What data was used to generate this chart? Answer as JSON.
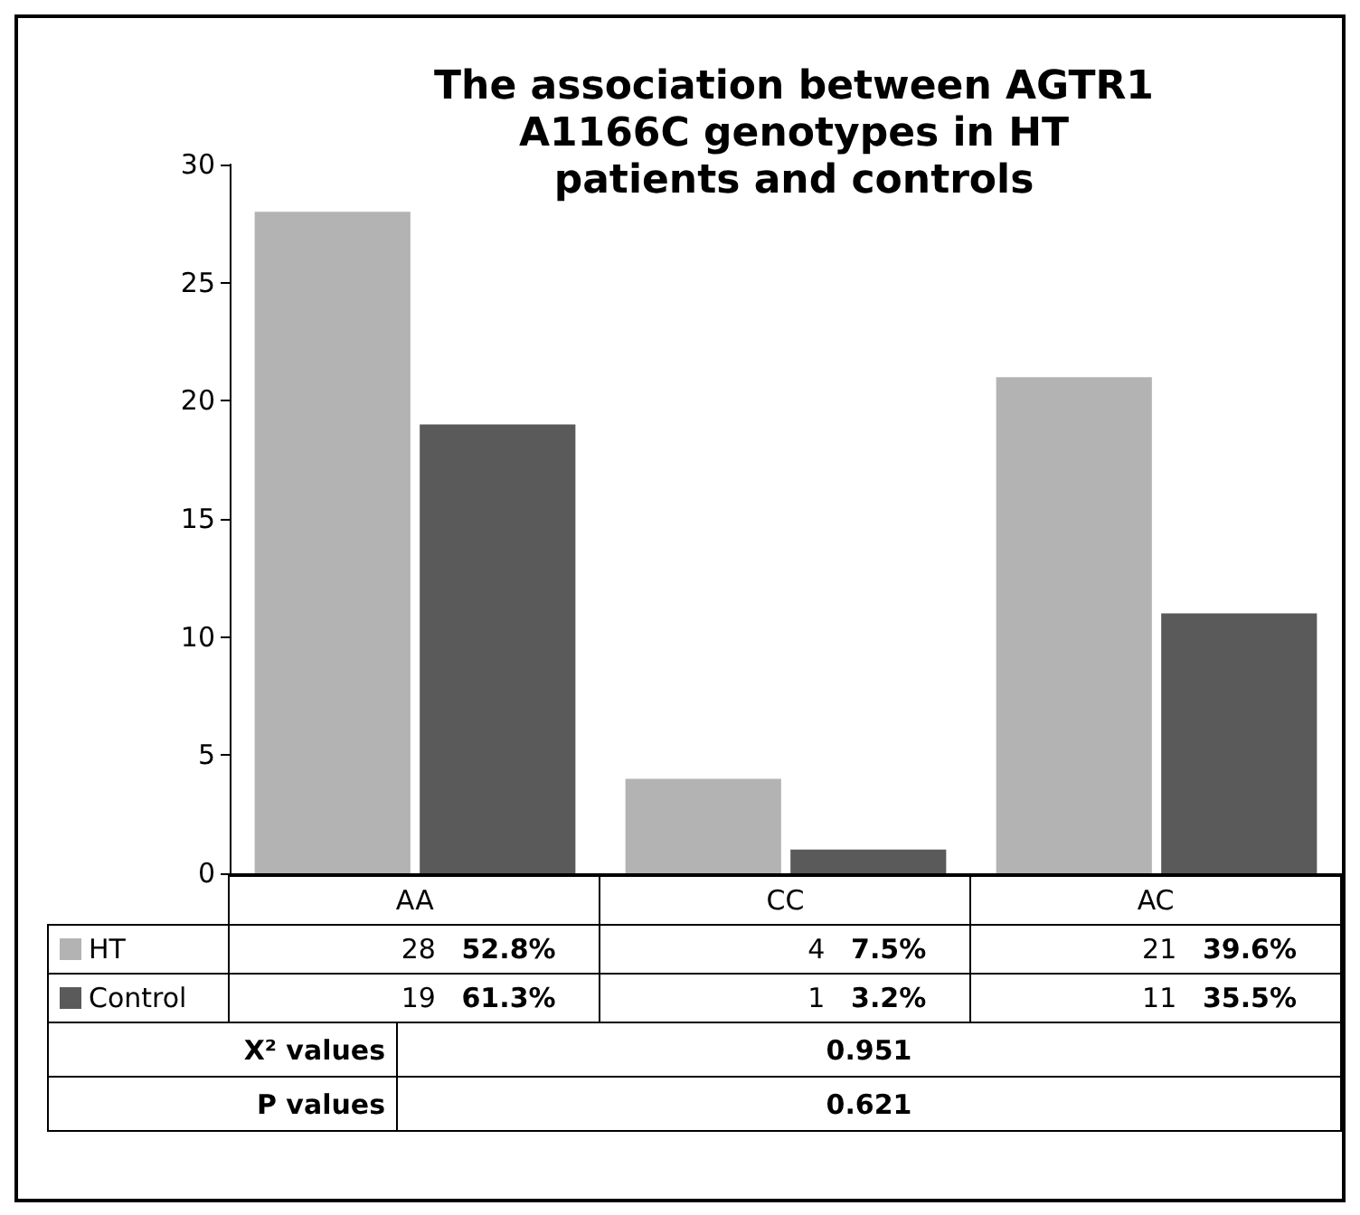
{
  "chart_data": {
    "type": "bar",
    "title": "The association between AGTR1 A1166C genotypes in HT patients and controls",
    "categories": [
      "AA",
      "CC",
      "AC"
    ],
    "series": [
      {
        "name": "HT",
        "color": "#b3b3b3",
        "values": [
          28,
          4,
          21
        ],
        "value_labels": [
          "28 52.8%",
          "4 7.5%",
          "21 39.6%"
        ]
      },
      {
        "name": "Control",
        "color": "#5a5a5a",
        "values": [
          19,
          1,
          11
        ],
        "value_labels": [
          "19 61.3%",
          "1 3.2%",
          "11 35.5%"
        ]
      }
    ],
    "ylim": [
      0,
      30
    ],
    "yticks": [
      0,
      5,
      10,
      15,
      20,
      25,
      30
    ],
    "legend": "bottom",
    "annotations": [
      "X² values",
      "0.951",
      "P values",
      "0.621"
    ]
  }
}
